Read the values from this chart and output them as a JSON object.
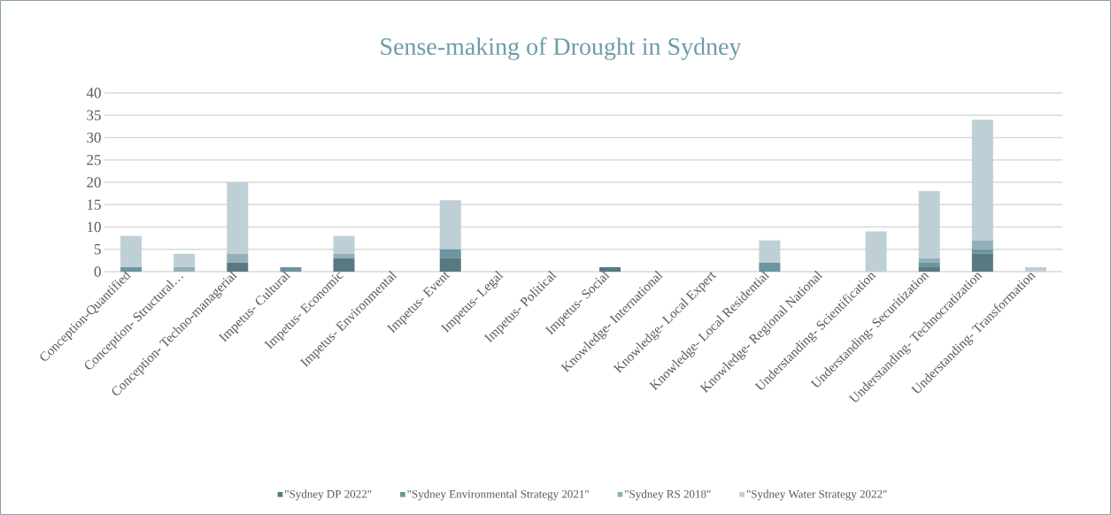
{
  "chart_data": {
    "type": "bar",
    "stacked": true,
    "title": "Sense-making  of Drought  in Sydney",
    "categories": [
      "Conception-Quantified",
      "Conception- Structural…",
      "Conception- Techno-managerial",
      "Impetus- Cultural",
      "Impetus- Economic",
      "Impetus- Environmental",
      "Impetus- Event",
      "Impetus- Legal",
      "Impetus- Political",
      "Impetus- Social",
      "Knowledge- International",
      "Knowledge- Local Expert",
      "Knowledge- Local Residential",
      "Knowledge- Regional National",
      "Understanding- Scientification",
      "Understanding- Securitization",
      "Understanding- Technocratization",
      "Understanding- Transformation"
    ],
    "series": [
      {
        "name": "\"Sydney DP 2022\"",
        "color": "#5a7882",
        "values": [
          0,
          0,
          2,
          0,
          3,
          0,
          3,
          0,
          0,
          1,
          0,
          0,
          0,
          0,
          0,
          1,
          4,
          0
        ]
      },
      {
        "name": "\"Sydney Environmental Strategy 2021\"",
        "color": "#6b959f",
        "values": [
          1,
          0,
          0,
          1,
          0,
          0,
          2,
          0,
          0,
          0,
          0,
          0,
          2,
          0,
          0,
          1,
          1,
          0
        ]
      },
      {
        "name": "\"Sydney RS 2018\"",
        "color": "#93b0b8",
        "values": [
          0,
          1,
          2,
          0,
          1,
          0,
          0,
          0,
          0,
          0,
          0,
          0,
          0,
          0,
          0,
          1,
          2,
          0
        ]
      },
      {
        "name": "\"Sydney Water Strategy 2022\"",
        "color": "#bfcfd6",
        "values": [
          7,
          3,
          16,
          0,
          4,
          0,
          11,
          0,
          0,
          0,
          0,
          0,
          5,
          0,
          9,
          15,
          27,
          1
        ]
      }
    ],
    "ylim": [
      0,
      40
    ],
    "yticks": [
      0,
      5,
      10,
      15,
      20,
      25,
      30,
      35,
      40
    ],
    "grid": "y",
    "legend": "bottom"
  }
}
